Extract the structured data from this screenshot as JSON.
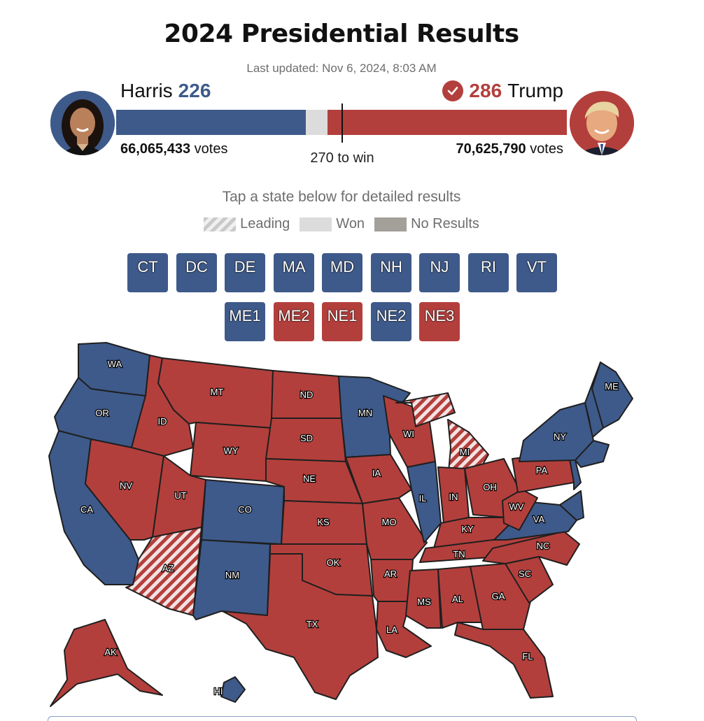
{
  "header": {
    "title": "2024 Presidential Results",
    "updated": "Last updated: Nov 6, 2024, 8:03 AM"
  },
  "candidates": {
    "harris": {
      "name": "Harris",
      "electoral": "226",
      "votes": "66,065,433",
      "votes_label": "votes",
      "photo_icon": "harris-photo"
    },
    "trump": {
      "name": "Trump",
      "electoral": "286",
      "votes": "70,625,790",
      "votes_label": "votes",
      "photo_icon": "trump-photo",
      "winner_icon": "checkmark-icon"
    }
  },
  "bar": {
    "total": 538,
    "dem": 226,
    "rep": 286,
    "threshold": 270,
    "threshold_label": "270 to win"
  },
  "instructions": "Tap a state below for detailed results",
  "legend": {
    "leading": "Leading",
    "won": "Won",
    "none": "No Results"
  },
  "small_states": [
    {
      "code": "CT",
      "party": "dem"
    },
    {
      "code": "DC",
      "party": "dem"
    },
    {
      "code": "DE",
      "party": "dem"
    },
    {
      "code": "MA",
      "party": "dem"
    },
    {
      "code": "MD",
      "party": "dem"
    },
    {
      "code": "NH",
      "party": "dem"
    },
    {
      "code": "NJ",
      "party": "dem"
    },
    {
      "code": "RI",
      "party": "dem"
    },
    {
      "code": "VT",
      "party": "dem"
    }
  ],
  "districts": [
    {
      "code": "ME1",
      "party": "dem"
    },
    {
      "code": "ME2",
      "party": "rep"
    },
    {
      "code": "NE1",
      "party": "rep"
    },
    {
      "code": "NE2",
      "party": "dem"
    },
    {
      "code": "NE3",
      "party": "rep"
    }
  ],
  "colors": {
    "dem": "#3e5a8a",
    "rep": "#b33f3c",
    "won_gray": "#dcdcdc",
    "no_results": "#a39f99"
  },
  "map_states": [
    {
      "code": "WA",
      "party": "dem"
    },
    {
      "code": "OR",
      "party": "dem"
    },
    {
      "code": "CA",
      "party": "dem"
    },
    {
      "code": "ID",
      "party": "rep"
    },
    {
      "code": "NV",
      "party": "rep"
    },
    {
      "code": "MT",
      "party": "rep"
    },
    {
      "code": "WY",
      "party": "rep"
    },
    {
      "code": "UT",
      "party": "rep"
    },
    {
      "code": "AZ",
      "party": "rep-leading"
    },
    {
      "code": "CO",
      "party": "dem"
    },
    {
      "code": "NM",
      "party": "dem"
    },
    {
      "code": "ND",
      "party": "rep"
    },
    {
      "code": "SD",
      "party": "rep"
    },
    {
      "code": "NE",
      "party": "rep"
    },
    {
      "code": "KS",
      "party": "rep"
    },
    {
      "code": "OK",
      "party": "rep"
    },
    {
      "code": "TX",
      "party": "rep"
    },
    {
      "code": "MN",
      "party": "dem"
    },
    {
      "code": "IA",
      "party": "rep"
    },
    {
      "code": "MO",
      "party": "rep"
    },
    {
      "code": "AR",
      "party": "rep"
    },
    {
      "code": "LA",
      "party": "rep"
    },
    {
      "code": "WI",
      "party": "rep"
    },
    {
      "code": "IL",
      "party": "dem"
    },
    {
      "code": "MI",
      "party": "rep-leading"
    },
    {
      "code": "IN",
      "party": "rep"
    },
    {
      "code": "OH",
      "party": "rep"
    },
    {
      "code": "KY",
      "party": "rep"
    },
    {
      "code": "TN",
      "party": "rep"
    },
    {
      "code": "MS",
      "party": "rep"
    },
    {
      "code": "AL",
      "party": "rep"
    },
    {
      "code": "GA",
      "party": "rep"
    },
    {
      "code": "FL",
      "party": "rep"
    },
    {
      "code": "SC",
      "party": "rep"
    },
    {
      "code": "NC",
      "party": "rep"
    },
    {
      "code": "VA",
      "party": "dem"
    },
    {
      "code": "WV",
      "party": "rep"
    },
    {
      "code": "PA",
      "party": "rep"
    },
    {
      "code": "NY",
      "party": "dem"
    },
    {
      "code": "ME",
      "party": "dem"
    },
    {
      "code": "AK",
      "party": "rep"
    },
    {
      "code": "HI",
      "party": "dem"
    }
  ]
}
